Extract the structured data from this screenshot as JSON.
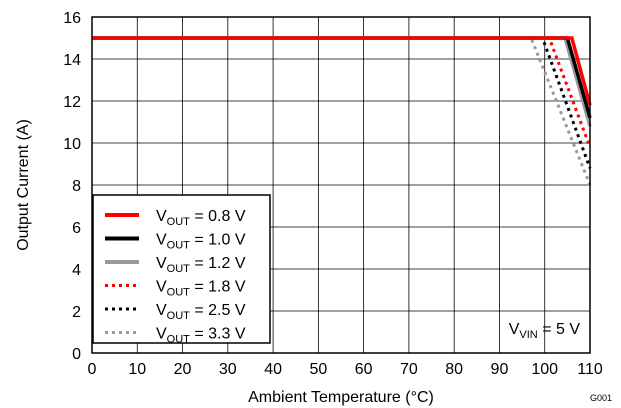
{
  "chart_data": {
    "type": "line",
    "xlabel": "Ambient Temperature (°C)",
    "ylabel": "Output Current (A)",
    "xlim": [
      0,
      110
    ],
    "ylim": [
      0,
      16
    ],
    "xticks": [
      0,
      10,
      20,
      30,
      40,
      50,
      60,
      70,
      80,
      90,
      100,
      110
    ],
    "yticks": [
      0,
      2,
      4,
      6,
      8,
      10,
      12,
      14,
      16
    ],
    "grid": true,
    "legend_position": "bottom-left",
    "annotation": {
      "base": "V",
      "sub": "VIN",
      "rest": " = 5 V"
    },
    "figure_id": "G001",
    "series": [
      {
        "name": "VOUT = 0.8 V",
        "legend": {
          "base": "V",
          "sub": "OUT",
          "rest": " = 0.8 V"
        },
        "color": "#ff0000",
        "dash": "solid",
        "x": [
          0,
          106,
          110
        ],
        "y": [
          15,
          15,
          11.8
        ]
      },
      {
        "name": "VOUT = 1.0 V",
        "legend": {
          "base": "V",
          "sub": "OUT",
          "rest": " = 1.0 V"
        },
        "color": "#000000",
        "dash": "solid",
        "x": [
          0,
          105,
          110
        ],
        "y": [
          15,
          15,
          11.2
        ]
      },
      {
        "name": "VOUT = 1.2 V",
        "legend": {
          "base": "V",
          "sub": "OUT",
          "rest": " = 1.2 V"
        },
        "color": "#999999",
        "dash": "solid",
        "x": [
          0,
          104.5,
          110
        ],
        "y": [
          15,
          15,
          10.8
        ]
      },
      {
        "name": "VOUT = 1.8 V",
        "legend": {
          "base": "V",
          "sub": "OUT",
          "rest": " = 1.8 V"
        },
        "color": "#ff0000",
        "dash": "dotted",
        "x": [
          0,
          101,
          110
        ],
        "y": [
          15,
          15,
          9.8
        ]
      },
      {
        "name": "VOUT = 2.5 V",
        "legend": {
          "base": "V",
          "sub": "OUT",
          "rest": " = 2.5 V"
        },
        "color": "#000000",
        "dash": "dotted",
        "x": [
          0,
          99.5,
          110
        ],
        "y": [
          15,
          15,
          8.8
        ]
      },
      {
        "name": "VOUT = 3.3 V",
        "legend": {
          "base": "V",
          "sub": "OUT",
          "rest": " = 3.3 V"
        },
        "color": "#999999",
        "dash": "dotted",
        "x": [
          0,
          97,
          110
        ],
        "y": [
          15,
          15,
          8.0
        ]
      }
    ]
  }
}
